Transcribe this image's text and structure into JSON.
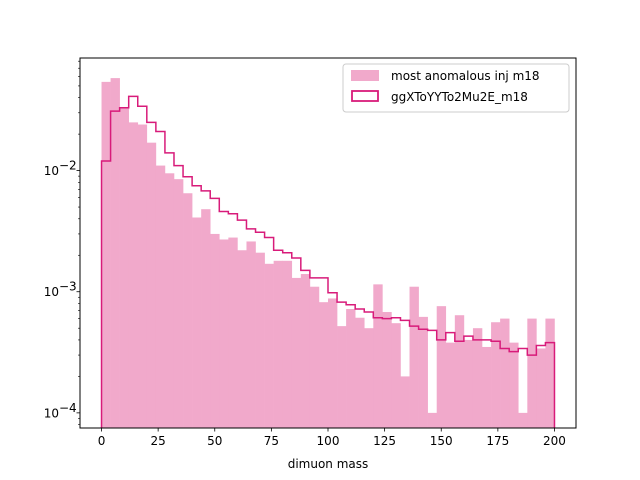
{
  "chart_data": {
    "type": "bar",
    "xlabel": "dimuon mass",
    "ylabel": "",
    "yscale": "log",
    "xlim": [
      -9.5,
      209.5
    ],
    "ylim": [
      7.5e-05,
      0.085
    ],
    "bin_width": 4,
    "x_ticks": [
      0,
      25,
      50,
      75,
      100,
      125,
      150,
      175,
      200
    ],
    "x_tick_labels": [
      "0",
      "25",
      "50",
      "75",
      "100",
      "125",
      "150",
      "175",
      "200"
    ],
    "y_ticks": [
      0.0001,
      0.001,
      0.01
    ],
    "y_tick_labels": [
      "10",
      "10",
      "10"
    ],
    "y_tick_exponents": [
      "−4",
      "−3",
      "−2"
    ],
    "legend_position": "top-right",
    "colors": {
      "filled": "#f1a9cb",
      "step": "#d81b7a"
    },
    "series": [
      {
        "name": "most anomalous inj m18",
        "style": "filled",
        "bin_edges": [
          0,
          4,
          8,
          12,
          16,
          20,
          24,
          28,
          32,
          36,
          40,
          44,
          48,
          52,
          56,
          60,
          64,
          68,
          72,
          76,
          80,
          84,
          88,
          92,
          96,
          100,
          104,
          108,
          112,
          116,
          120,
          124,
          128,
          132,
          136,
          140,
          144,
          148,
          152,
          156,
          160,
          164,
          168,
          172,
          176,
          180,
          184,
          188,
          192,
          196,
          200
        ],
        "values": [
          0.054,
          0.058,
          0.033,
          0.025,
          0.024,
          0.017,
          0.011,
          0.0095,
          0.0085,
          0.0065,
          0.0041,
          0.0048,
          0.003,
          0.0027,
          0.0028,
          0.0022,
          0.0026,
          0.0021,
          0.0017,
          0.0018,
          0.0018,
          0.0013,
          0.0014,
          0.0011,
          0.00082,
          0.00088,
          0.00052,
          0.00072,
          0.00061,
          0.0005,
          0.00115,
          0.00068,
          0.00055,
          0.0002,
          0.0011,
          0.00062,
          0.0001,
          0.00076,
          0.00038,
          0.00064,
          0.0004,
          0.0005,
          0.00035,
          0.00056,
          0.0006,
          0.00038,
          0.0001,
          0.0006,
          0.00034,
          0.0006
        ]
      },
      {
        "name": "ggXToYYTo2Mu2E_m18",
        "style": "step",
        "bin_edges": [
          0,
          4,
          8,
          12,
          16,
          20,
          24,
          28,
          32,
          36,
          40,
          44,
          48,
          52,
          56,
          60,
          64,
          68,
          72,
          76,
          80,
          84,
          88,
          92,
          96,
          100,
          104,
          108,
          112,
          116,
          120,
          124,
          128,
          132,
          136,
          140,
          144,
          148,
          152,
          156,
          160,
          164,
          168,
          172,
          176,
          180,
          184,
          188,
          192,
          196,
          200
        ],
        "values": [
          0.012,
          0.031,
          0.033,
          0.041,
          0.034,
          0.025,
          0.021,
          0.014,
          0.011,
          0.0089,
          0.0075,
          0.0068,
          0.0059,
          0.0046,
          0.0044,
          0.0039,
          0.0033,
          0.0031,
          0.0028,
          0.0022,
          0.0021,
          0.0019,
          0.0015,
          0.0013,
          0.0013,
          0.00098,
          0.00082,
          0.00078,
          0.00072,
          0.00068,
          0.00061,
          0.0006,
          0.00061,
          0.00058,
          0.00052,
          0.00049,
          0.00048,
          0.0004,
          0.00046,
          0.00039,
          0.00043,
          0.0004,
          0.0004,
          0.00039,
          0.00034,
          0.00032,
          0.00034,
          0.0003,
          0.00036,
          0.00038
        ]
      }
    ]
  }
}
